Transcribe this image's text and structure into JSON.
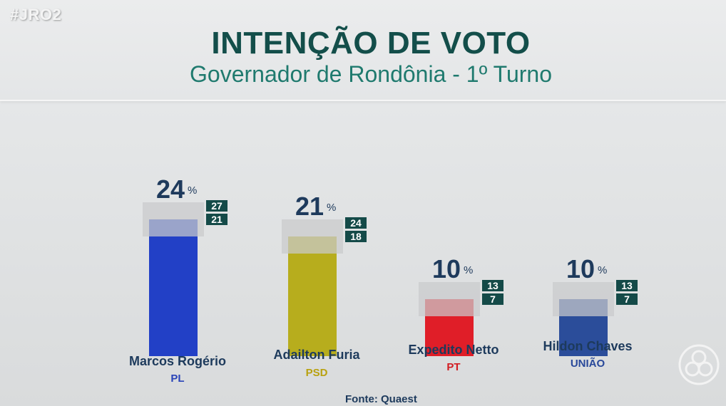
{
  "broadcast": {
    "hashtag": "#JRO2"
  },
  "header": {
    "title": "INTENÇÃO DE VOTO",
    "subtitle": "Governador de Rondônia - 1º Turno"
  },
  "footer": {
    "source": "Fonte: Quaest"
  },
  "logo": {
    "icon": "network-logo-icon"
  },
  "chart_data": {
    "type": "bar",
    "unit": "%",
    "ylim": [
      0,
      30
    ],
    "categories": [
      "Marcos Rogério",
      "Adailton Furia",
      "Expedito Netto",
      "Hildon Chaves"
    ],
    "parties": [
      "PL",
      "PSD",
      "PT",
      "UNIÃO"
    ],
    "values": [
      24,
      21,
      10,
      10
    ],
    "upper": [
      27,
      24,
      13,
      13
    ],
    "lower": [
      21,
      18,
      7,
      7
    ],
    "colors": [
      "#2240c6",
      "#b7ad1d",
      "#e01e28",
      "#2b4d9a"
    ],
    "party_colors": [
      "#2a44b8",
      "#b8a10f",
      "#d21c22",
      "#28489a"
    ]
  }
}
